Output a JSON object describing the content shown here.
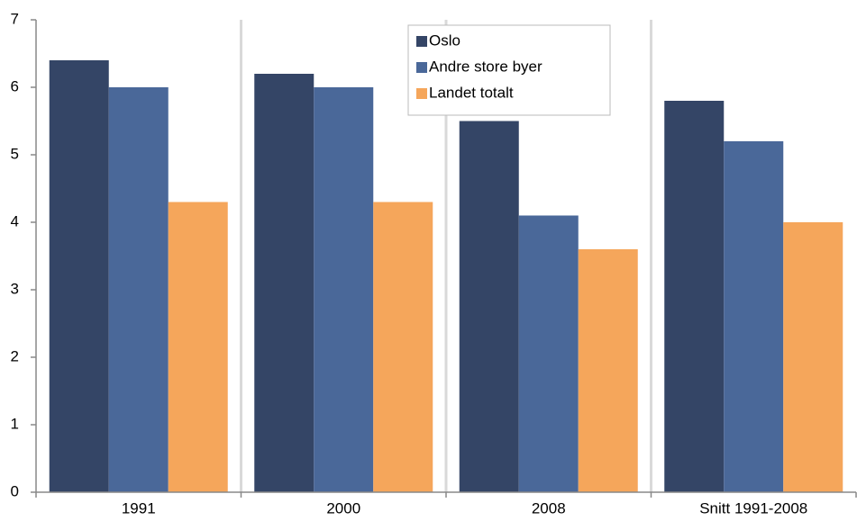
{
  "chart_data": {
    "type": "bar",
    "categories": [
      "1991",
      "2000",
      "2008",
      "Snitt 1991-2008"
    ],
    "series": [
      {
        "name": "Oslo",
        "color": "#344566",
        "values": [
          6.4,
          6.2,
          5.5,
          5.8
        ]
      },
      {
        "name": "Andre store byer",
        "color": "#4a6899",
        "values": [
          6.0,
          6.0,
          4.1,
          5.2
        ]
      },
      {
        "name": "Landet totalt",
        "color": "#f5a65b",
        "values": [
          4.3,
          4.3,
          3.6,
          4.0
        ]
      }
    ],
    "ylim": [
      0,
      7
    ],
    "yticks": [
      0,
      1,
      2,
      3,
      4,
      5,
      6,
      7
    ],
    "legend": "upper center"
  }
}
